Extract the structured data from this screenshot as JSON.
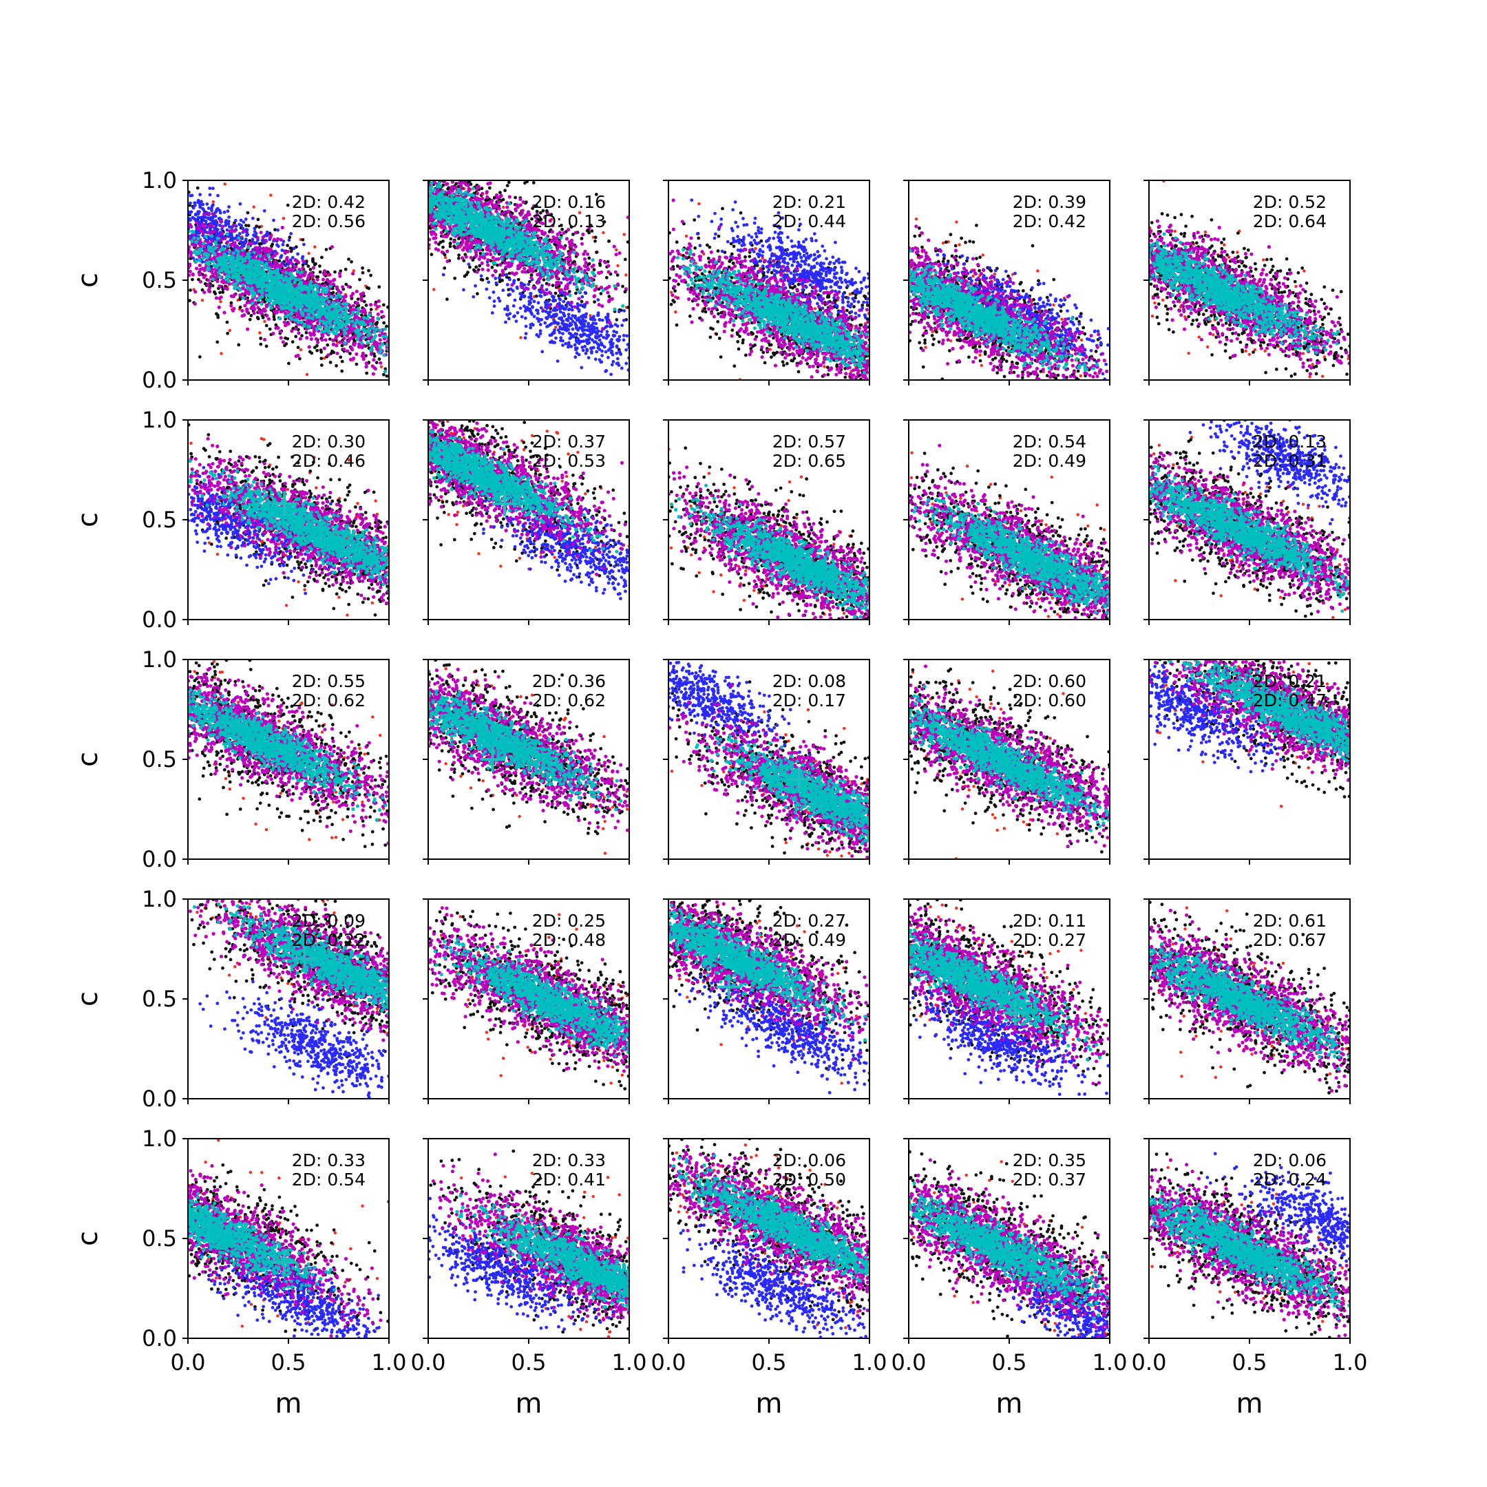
{
  "figure": {
    "xlabel": "m",
    "ylabel": "c",
    "xlim": [
      0,
      1
    ],
    "ylim": [
      0,
      1
    ],
    "xticks": [
      "0.0",
      "0.5",
      "1.0"
    ],
    "yticks": [
      "0.0",
      "0.5",
      "1.0"
    ],
    "rows": 5,
    "cols": 5
  },
  "colors": {
    "red": "#ff2a1a",
    "black": "#111111",
    "blue": "#2a2aff",
    "magenta": "#c000c0",
    "cyan": "#00bfbf",
    "marker": "#1fbfbf"
  },
  "chart_data": {
    "type": "scatter",
    "layout": "5x5 grid of scatter panels, shared axes",
    "series_colors": [
      "red",
      "black",
      "blue",
      "magenta",
      "cyan"
    ],
    "panels": [
      {
        "row": 0,
        "col": 0,
        "label1": "2D: 0.42",
        "label2": "2D: 0.56",
        "main": [
          0.47,
          0.45
        ],
        "blue": [
          0.12,
          0.75
        ],
        "marker": null
      },
      {
        "row": 0,
        "col": 1,
        "label1": "2D: 0.16",
        "label2": "2D: 0.13",
        "main": [
          0.25,
          0.78
        ],
        "blue": [
          0.72,
          0.28
        ],
        "marker": null
      },
      {
        "row": 0,
        "col": 2,
        "label1": "2D: 0.21",
        "label2": "2D: 0.44",
        "main": [
          0.62,
          0.3
        ],
        "blue": [
          0.68,
          0.55
        ],
        "marker": null
      },
      {
        "row": 0,
        "col": 3,
        "label1": "2D: 0.39",
        "label2": "2D: 0.42",
        "main": [
          0.3,
          0.35
        ],
        "blue": [
          0.55,
          0.33
        ],
        "marker": null
      },
      {
        "row": 0,
        "col": 4,
        "label1": "2D: 0.52",
        "label2": "2D: 0.64",
        "main": [
          0.35,
          0.45
        ],
        "blue": null,
        "marker": null
      },
      {
        "row": 1,
        "col": 0,
        "label1": "2D: 0.30",
        "label2": "2D: 0.46",
        "main": [
          0.65,
          0.43
        ],
        "blue": [
          0.2,
          0.5
        ],
        "marker": [
          0.48,
          0.58
        ]
      },
      {
        "row": 1,
        "col": 1,
        "label1": "2D: 0.37",
        "label2": "2D: 0.53",
        "main": [
          0.22,
          0.75
        ],
        "blue": [
          0.75,
          0.35
        ],
        "marker": [
          0.38,
          0.58
        ]
      },
      {
        "row": 1,
        "col": 2,
        "label1": "2D: 0.57",
        "label2": "2D: 0.65",
        "main": [
          0.65,
          0.28
        ],
        "blue": null,
        "marker": null
      },
      {
        "row": 1,
        "col": 3,
        "label1": "2D: 0.54",
        "label2": "2D: 0.49",
        "main": [
          0.62,
          0.3
        ],
        "blue": null,
        "marker": null
      },
      {
        "row": 1,
        "col": 4,
        "label1": "2D: 0.13",
        "label2": "2D: 0.31",
        "main": [
          0.45,
          0.45
        ],
        "blue": [
          0.7,
          0.8
        ],
        "marker": null
      },
      {
        "row": 2,
        "col": 0,
        "label1": "2D: 0.55",
        "label2": "2D: 0.62",
        "main": [
          0.35,
          0.6
        ],
        "blue": null,
        "marker": null
      },
      {
        "row": 2,
        "col": 1,
        "label1": "2D: 0.36",
        "label2": "2D: 0.62",
        "main": [
          0.35,
          0.6
        ],
        "blue": null,
        "marker": [
          0.32,
          0.5
        ]
      },
      {
        "row": 2,
        "col": 2,
        "label1": "2D: 0.08",
        "label2": "2D: 0.17",
        "main": [
          0.78,
          0.3
        ],
        "blue": [
          0.15,
          0.82
        ],
        "marker": [
          0.65,
          0.4
        ]
      },
      {
        "row": 2,
        "col": 3,
        "label1": "2D: 0.60",
        "label2": "2D: 0.60",
        "main": [
          0.45,
          0.5
        ],
        "blue": null,
        "marker": null
      },
      {
        "row": 2,
        "col": 4,
        "label1": "2D: 0.21",
        "label2": "2D: 0.47",
        "main": [
          0.72,
          0.72
        ],
        "blue": [
          0.2,
          0.75
        ],
        "marker": null
      },
      {
        "row": 3,
        "col": 0,
        "label1": "2D: 0.09",
        "label2": "2D: 0.22",
        "main": [
          0.75,
          0.65
        ],
        "blue": [
          0.65,
          0.25
        ],
        "marker": [
          0.58,
          0.7
        ]
      },
      {
        "row": 3,
        "col": 1,
        "label1": "2D: 0.25",
        "label2": "2D: 0.48",
        "main": [
          0.62,
          0.48
        ],
        "blue": null,
        "marker": null
      },
      {
        "row": 3,
        "col": 2,
        "label1": "2D: 0.27",
        "label2": "2D: 0.49",
        "main": [
          0.3,
          0.72
        ],
        "blue": [
          0.6,
          0.35
        ],
        "marker": [
          0.3,
          0.56
        ]
      },
      {
        "row": 3,
        "col": 3,
        "label1": "2D: 0.11",
        "label2": "2D: 0.27",
        "main": [
          0.3,
          0.6
        ],
        "blue": [
          0.45,
          0.3
        ],
        "marker": [
          0.53,
          0.43
        ]
      },
      {
        "row": 3,
        "col": 4,
        "label1": "2D: 0.61",
        "label2": "2D: 0.67",
        "main": [
          0.45,
          0.5
        ],
        "blue": null,
        "marker": null
      },
      {
        "row": 4,
        "col": 0,
        "label1": "2D: 0.33",
        "label2": "2D: 0.54",
        "main": [
          0.12,
          0.55
        ],
        "blue": [
          0.55,
          0.2
        ],
        "marker": [
          0.48,
          0.38
        ]
      },
      {
        "row": 4,
        "col": 1,
        "label1": "2D: 0.33",
        "label2": "2D: 0.41",
        "main": [
          0.8,
          0.35
        ],
        "blue": [
          0.35,
          0.35
        ],
        "marker": [
          0.4,
          0.48
        ]
      },
      {
        "row": 4,
        "col": 2,
        "label1": "2D: 0.06",
        "label2": "2D: 0.50",
        "main": [
          0.6,
          0.55
        ],
        "blue": [
          0.55,
          0.25
        ],
        "marker": null
      },
      {
        "row": 4,
        "col": 3,
        "label1": "2D: 0.35",
        "label2": "2D: 0.37",
        "main": [
          0.45,
          0.45
        ],
        "blue": [
          0.9,
          0.1
        ],
        "marker": null
      },
      {
        "row": 4,
        "col": 4,
        "label1": "2D: 0.06",
        "label2": "2D: 0.24",
        "main": [
          0.45,
          0.45
        ],
        "blue": [
          0.88,
          0.58
        ],
        "marker": null
      }
    ]
  }
}
